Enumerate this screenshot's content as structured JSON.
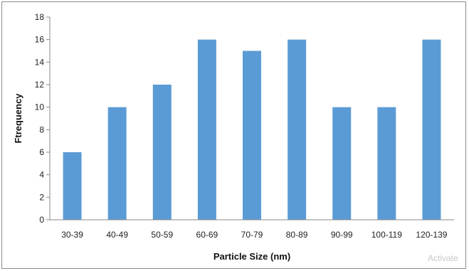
{
  "chart_data": {
    "type": "bar",
    "title": "",
    "xlabel": "Particle Size (nm)",
    "ylabel": "Ftrequency",
    "categories": [
      "30-39",
      "40-49",
      "50-59",
      "60-69",
      "70-79",
      "80-89",
      "90-99",
      "100-119",
      "120-139"
    ],
    "values": [
      6,
      10,
      12,
      16,
      15,
      16,
      10,
      10,
      16
    ],
    "ylim": [
      0,
      18
    ],
    "yticks": [
      0,
      2,
      4,
      6,
      8,
      10,
      12,
      14,
      16,
      18
    ],
    "grid": false,
    "legend": "none",
    "bar_color": "#5b9bd5"
  },
  "watermark": "Activate"
}
